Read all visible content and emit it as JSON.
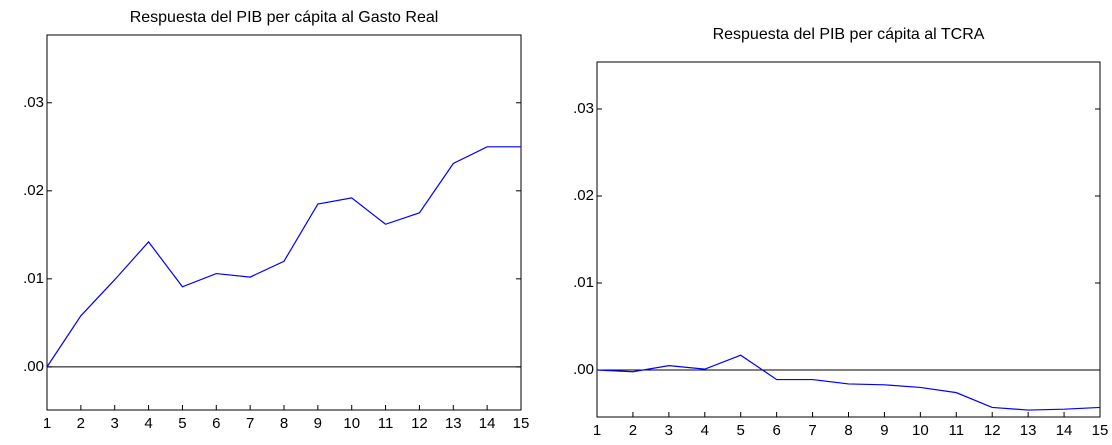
{
  "chart_data": [
    {
      "type": "line",
      "title": "Respuesta del PIB per cápita al Gasto Real",
      "x": [
        1,
        2,
        3,
        4,
        5,
        6,
        7,
        8,
        9,
        10,
        11,
        12,
        13,
        14,
        15
      ],
      "values": [
        0.0,
        0.0058,
        0.0099,
        0.0142,
        0.0091,
        0.0106,
        0.0102,
        0.012,
        0.0185,
        0.0192,
        0.0162,
        0.0175,
        0.0231,
        0.025,
        0.025
      ],
      "color": "#0000ff",
      "xlim": [
        1,
        15
      ],
      "xticks": [
        1,
        2,
        3,
        4,
        5,
        6,
        7,
        8,
        9,
        10,
        11,
        12,
        13,
        14,
        15
      ],
      "ylim": [
        -0.0049,
        0.0377
      ],
      "yticks": [
        {
          "value": 0.0,
          "label": ".00"
        },
        {
          "value": 0.01,
          "label": ".01"
        },
        {
          "value": 0.02,
          "label": ".02"
        },
        {
          "value": 0.03,
          "label": ".03"
        }
      ]
    },
    {
      "type": "line",
      "title": "Respuesta del PIB per cápita al TCRA",
      "x": [
        1,
        2,
        3,
        4,
        5,
        6,
        7,
        8,
        9,
        10,
        11,
        12,
        13,
        14,
        15
      ],
      "values": [
        0.0,
        -0.0002,
        0.0005,
        0.0001,
        0.0017,
        -0.0011,
        -0.0011,
        -0.0016,
        -0.0017,
        -0.002,
        -0.0026,
        -0.0043,
        -0.0046,
        -0.0045,
        -0.0043
      ],
      "color": "#0000ff",
      "xlim": [
        1,
        15
      ],
      "xticks": [
        1,
        2,
        3,
        4,
        5,
        6,
        7,
        8,
        9,
        10,
        11,
        12,
        13,
        14,
        15
      ],
      "ylim": [
        -0.0054,
        0.0354
      ],
      "yticks": [
        {
          "value": 0.0,
          "label": ".00"
        },
        {
          "value": 0.01,
          "label": ".01"
        },
        {
          "value": 0.02,
          "label": ".02"
        },
        {
          "value": 0.03,
          "label": ".03"
        }
      ]
    }
  ]
}
